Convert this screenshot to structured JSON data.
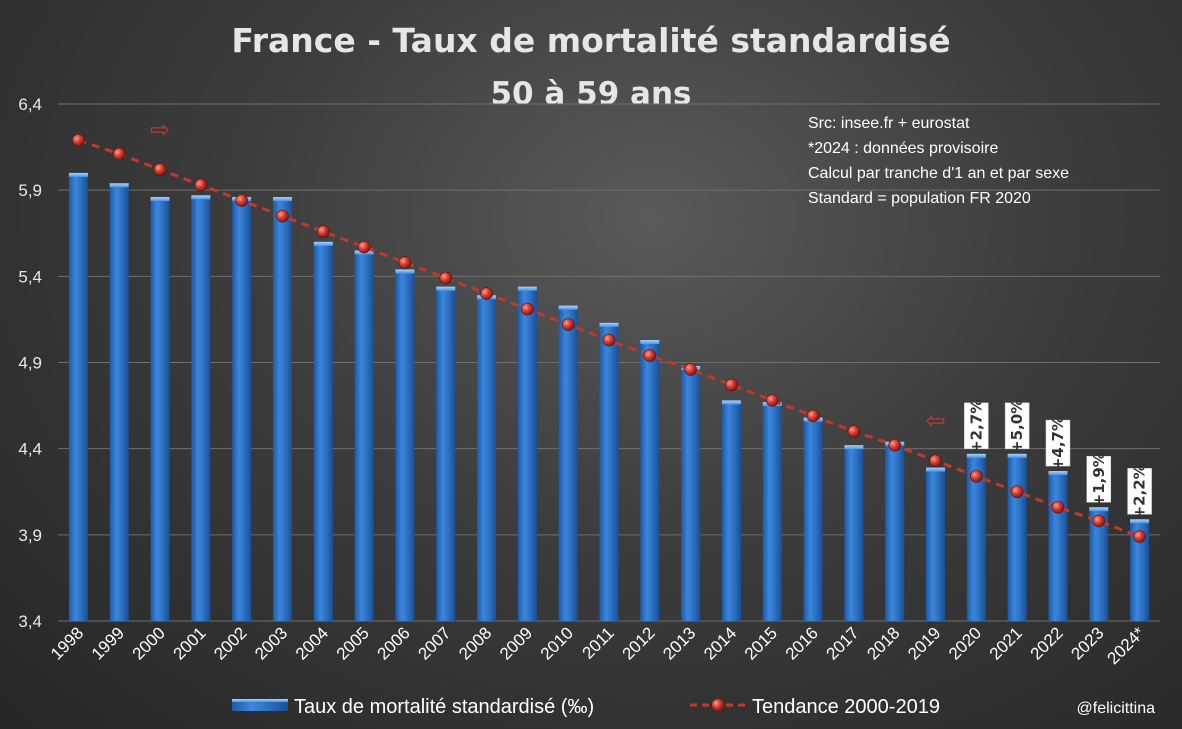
{
  "chart_data": {
    "type": "bar",
    "title": "France - Taux de mortalité standardisé",
    "subtitle": "50 à 59 ans",
    "categories": [
      "1998",
      "1999",
      "2000",
      "2001",
      "2002",
      "2003",
      "2004",
      "2005",
      "2006",
      "2007",
      "2008",
      "2009",
      "2010",
      "2011",
      "2012",
      "2013",
      "2014",
      "2015",
      "2016",
      "2017",
      "2018",
      "2019",
      "2020",
      "2021",
      "2022",
      "2023",
      "2024*"
    ],
    "series": [
      {
        "name": "Taux de mortalité standardisé (‰)",
        "type": "bar",
        "color": "#2e75c8",
        "values": [
          6.0,
          5.94,
          5.86,
          5.87,
          5.86,
          5.86,
          5.6,
          5.55,
          5.44,
          5.34,
          5.29,
          5.34,
          5.23,
          5.13,
          5.03,
          4.88,
          4.68,
          4.67,
          4.58,
          4.42,
          4.44,
          4.29,
          4.37,
          4.37,
          4.27,
          4.06,
          3.99
        ]
      },
      {
        "name": "Tendance 2000-2019",
        "type": "line",
        "style": "dashed",
        "color": "#c0392b",
        "values": [
          6.19,
          6.11,
          6.02,
          5.93,
          5.84,
          5.75,
          5.66,
          5.57,
          5.48,
          5.39,
          5.3,
          5.21,
          5.12,
          5.03,
          4.94,
          4.86,
          4.77,
          4.68,
          4.59,
          4.5,
          4.42,
          4.33,
          4.24,
          4.15,
          4.06,
          3.98,
          3.89
        ]
      }
    ],
    "ylim": [
      3.4,
      6.4
    ],
    "yticks": [
      "3,4",
      "3,9",
      "4,4",
      "4,9",
      "5,4",
      "5,9",
      "6,4"
    ],
    "xlabel": "",
    "ylabel": "",
    "grid": true,
    "legend_position": "bottom",
    "annotations": [
      {
        "category": "2020",
        "text": "+2,7%"
      },
      {
        "category": "2021",
        "text": "+5,0%"
      },
      {
        "category": "2022",
        "text": "+4,7%"
      },
      {
        "category": "2023",
        "text": "+1,9%"
      },
      {
        "category": "2024*",
        "text": "+2,2%"
      }
    ],
    "trend_markers": [
      {
        "category": "2000",
        "glyph": "⇨"
      },
      {
        "category": "2019",
        "glyph": "⇦"
      }
    ]
  },
  "source_notes": [
    "Src: insee.fr + eurostat",
    "*2024 : données provisoire",
    "Calcul par tranche d'1 an et par sexe",
    "Standard = population FR 2020"
  ],
  "handle": "@felicittina"
}
